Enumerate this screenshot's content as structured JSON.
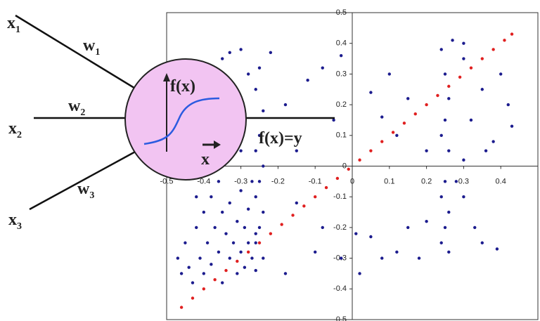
{
  "diagram": {
    "inputs": [
      {
        "label": "x",
        "sub": "1",
        "weight": "w",
        "weight_sub": "1"
      },
      {
        "label": "x",
        "sub": "2",
        "weight": "w",
        "weight_sub": "2"
      },
      {
        "label": "x",
        "sub": "3",
        "weight": "w",
        "weight_sub": "3"
      }
    ],
    "activation": "f(x)",
    "activation_axis": "x",
    "output": "f(x)=y"
  },
  "chart_data": {
    "type": "scatter",
    "xlim": [
      -0.5,
      0.5
    ],
    "ylim": [
      -0.5,
      0.5
    ],
    "xticks": [
      -0.5,
      -0.4,
      -0.3,
      -0.2,
      -0.1,
      0,
      0.1,
      0.2,
      0.3,
      0.4
    ],
    "yticks": [
      -0.5,
      -0.4,
      -0.3,
      -0.2,
      -0.1,
      0,
      0.1,
      0.2,
      0.3,
      0.4,
      0.5
    ],
    "series": [
      {
        "color": "#1c1c8e",
        "x": [
          -0.33,
          -0.35,
          -0.3,
          -0.42,
          -0.38,
          -0.32,
          -0.28,
          -0.22,
          -0.18,
          -0.12,
          -0.08,
          -0.05,
          -0.03,
          -0.15,
          -0.4,
          -0.3,
          -0.25,
          -0.26,
          -0.24,
          -0.25,
          -0.26,
          -0.24,
          -0.25,
          -0.26,
          -0.24,
          -0.25,
          -0.26,
          -0.24,
          -0.45,
          -0.44,
          -0.43,
          -0.42,
          -0.41,
          -0.4,
          -0.4,
          -0.39,
          -0.38,
          -0.38,
          -0.37,
          -0.36,
          -0.35,
          -0.35,
          -0.34,
          -0.33,
          -0.33,
          -0.32,
          -0.31,
          -0.31,
          -0.3,
          -0.3,
          -0.29,
          -0.29,
          -0.28,
          -0.28,
          -0.27,
          -0.27,
          -0.26,
          -0.26,
          -0.36,
          -0.42,
          -0.46,
          -0.47,
          -0.18,
          -0.1,
          -0.08,
          -0.03,
          -0.15,
          0.24,
          0.25,
          0.26,
          0.25,
          0.24,
          0.26,
          0.25,
          0.24,
          0.26,
          0.25,
          0.24,
          0.26,
          0.27,
          0.05,
          0.08,
          0.1,
          0.12,
          0.15,
          0.2,
          0.3,
          0.32,
          0.35,
          0.38,
          0.4,
          0.42,
          0.43,
          0.3,
          0.36,
          0.33,
          0.35,
          0.39,
          0.3,
          0.05,
          0.08,
          0.12,
          0.15,
          0.18,
          0.2,
          0.02,
          0.01,
          0.28,
          0.3
        ],
        "values": [
          0.37,
          0.35,
          0.38,
          0.12,
          0.25,
          0.2,
          0.3,
          0.37,
          0.2,
          0.28,
          0.32,
          0.15,
          0.36,
          0.05,
          0.05,
          0.05,
          0.32,
          0.25,
          0.18,
          0.1,
          0.05,
          0.0,
          -0.05,
          -0.1,
          -0.15,
          -0.2,
          -0.25,
          -0.3,
          -0.25,
          -0.33,
          -0.38,
          -0.2,
          -0.3,
          -0.15,
          -0.35,
          -0.25,
          -0.1,
          -0.32,
          -0.2,
          -0.28,
          -0.15,
          -0.38,
          -0.22,
          -0.3,
          -0.12,
          -0.25,
          -0.35,
          -0.18,
          -0.28,
          -0.08,
          -0.2,
          -0.33,
          -0.25,
          -0.14,
          -0.3,
          -0.05,
          -0.22,
          -0.34,
          -0.05,
          -0.1,
          -0.35,
          -0.3,
          -0.35,
          -0.28,
          -0.2,
          -0.3,
          -0.12,
          0.38,
          0.3,
          0.22,
          0.15,
          0.1,
          0.05,
          -0.05,
          -0.1,
          -0.15,
          -0.2,
          -0.25,
          -0.28,
          0.41,
          0.24,
          0.16,
          0.3,
          0.1,
          0.22,
          0.05,
          0.35,
          0.15,
          0.25,
          0.08,
          0.3,
          0.2,
          0.13,
          0.02,
          0.05,
          -0.2,
          -0.25,
          -0.27,
          -0.1,
          -0.23,
          -0.3,
          -0.28,
          -0.2,
          -0.3,
          -0.18,
          -0.35,
          -0.22,
          -0.05,
          0.4
        ]
      },
      {
        "color": "#e02020",
        "x": [
          -0.46,
          -0.43,
          -0.4,
          -0.37,
          -0.34,
          -0.31,
          -0.28,
          -0.25,
          -0.22,
          -0.19,
          -0.16,
          -0.13,
          -0.1,
          -0.07,
          -0.04,
          -0.01,
          0.02,
          0.05,
          0.08,
          0.11,
          0.14,
          0.17,
          0.2,
          0.23,
          0.26,
          0.29,
          0.32,
          0.35,
          0.38,
          0.41,
          0.43
        ],
        "values": [
          -0.46,
          -0.43,
          -0.4,
          -0.37,
          -0.34,
          -0.31,
          -0.28,
          -0.25,
          -0.22,
          -0.19,
          -0.16,
          -0.13,
          -0.1,
          -0.07,
          -0.04,
          -0.01,
          0.02,
          0.05,
          0.08,
          0.11,
          0.14,
          0.17,
          0.2,
          0.23,
          0.26,
          0.29,
          0.32,
          0.35,
          0.38,
          0.41,
          0.43
        ]
      }
    ]
  }
}
